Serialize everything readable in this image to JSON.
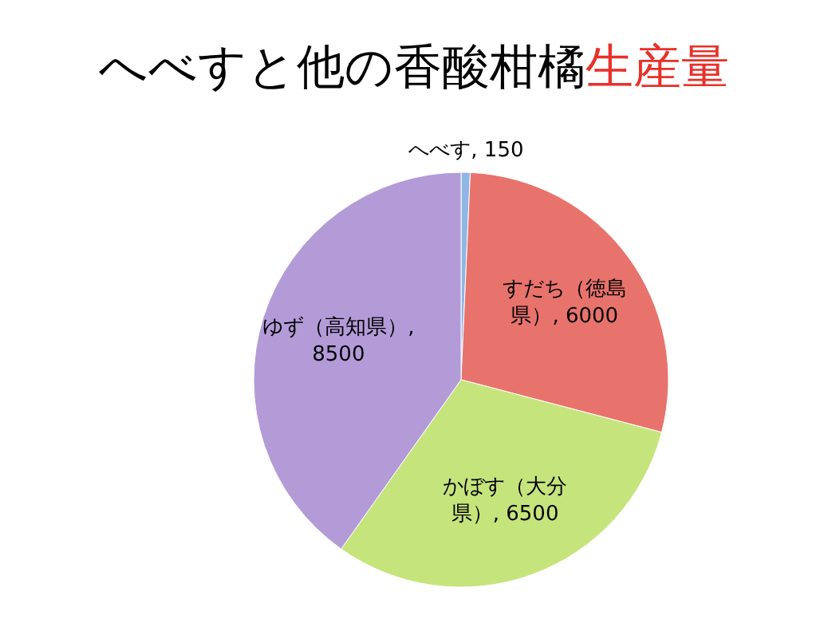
{
  "chart_data": {
    "type": "pie",
    "title": "へべすと他の香酸柑橘生産量",
    "categories": [
      "へべす",
      "すだち（徳島県）",
      "かぼす（大分県）",
      "ゆず（高知県）"
    ],
    "values": [
      150,
      6000,
      6500,
      8500
    ],
    "colors": [
      "#8fb6e4",
      "#e8736c",
      "#c6e47c",
      "#b39bd8"
    ],
    "value_labels": [
      ", 150",
      ", 6000",
      ", 6500",
      ", 8500"
    ]
  }
}
